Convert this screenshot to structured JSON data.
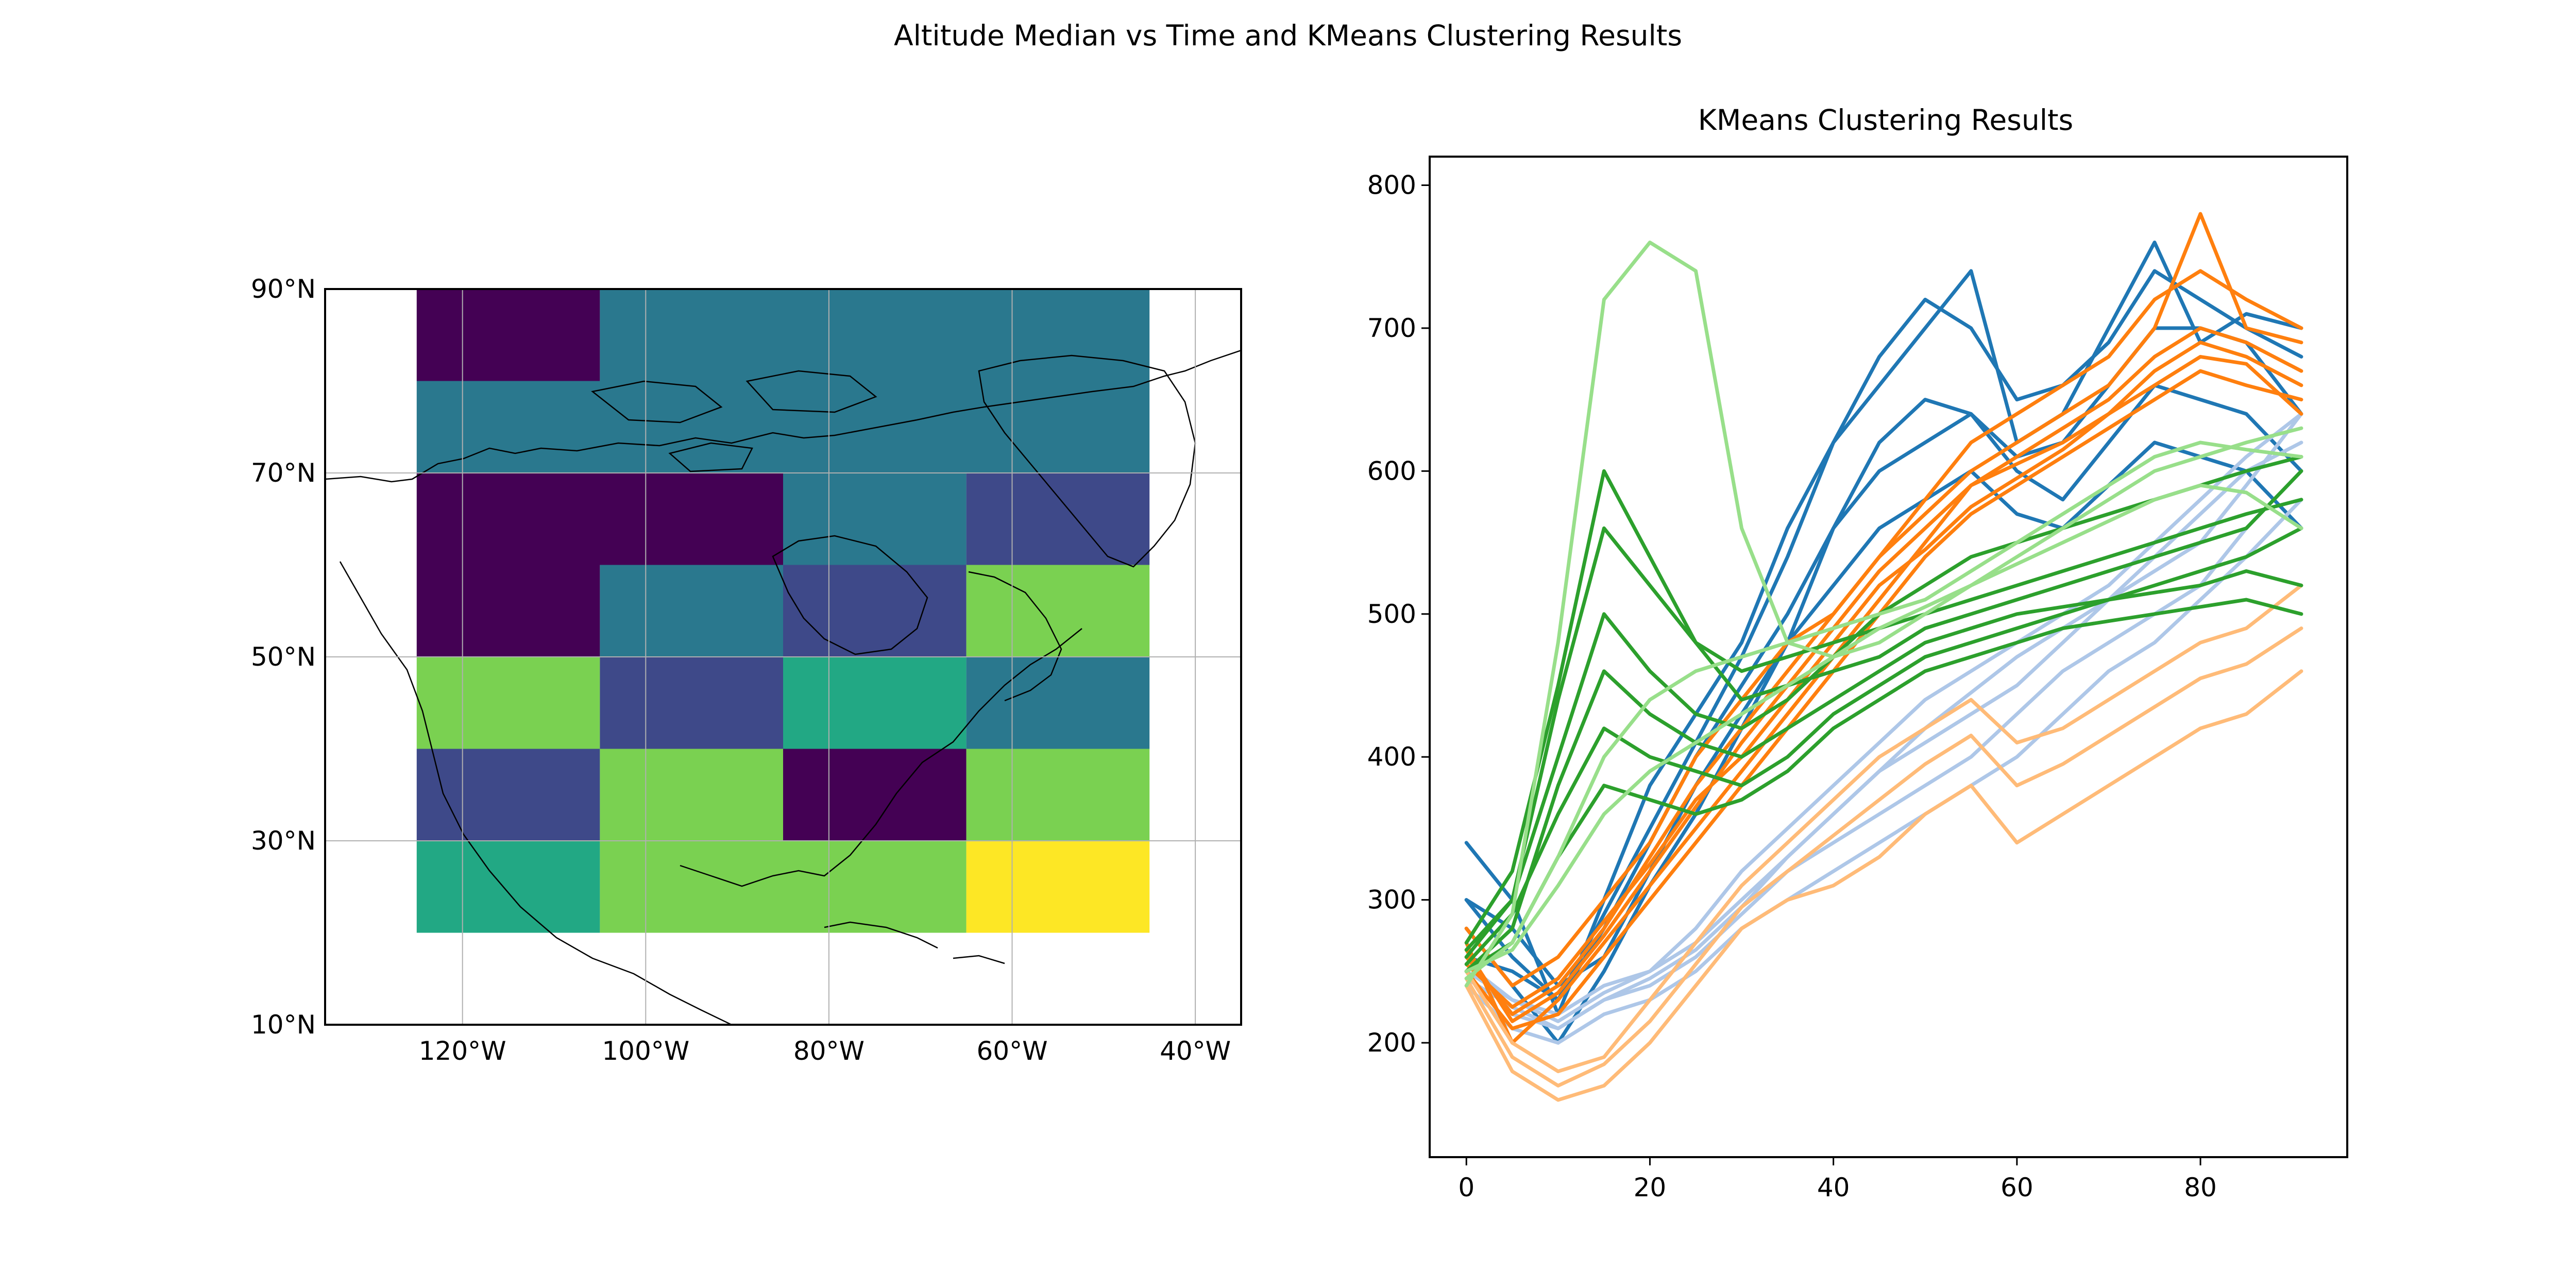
{
  "figure": {
    "suptitle": "Altitude Median vs Time and KMeans Clustering Results"
  },
  "chart_data": [
    {
      "type": "heatmap",
      "title": "",
      "xlabel": "",
      "ylabel": "",
      "x_ticks": [
        "120°W",
        "100°W",
        "80°W",
        "60°W",
        "40°W"
      ],
      "y_ticks": [
        "90°N",
        "70°N",
        "50°N",
        "30°N",
        "10°N"
      ],
      "xlim": [
        -135,
        -35
      ],
      "ylim": [
        10,
        90
      ],
      "grid": true,
      "colormap": [
        "#440154",
        "#3e4989",
        "#2a788e",
        "#22a884",
        "#7ad151",
        "#fde725"
      ],
      "cells": [
        {
          "lon0": -125,
          "lon1": -105,
          "lat0": 80,
          "lat1": 90,
          "cluster": 0
        },
        {
          "lon0": -105,
          "lon1": -45,
          "lat0": 80,
          "lat1": 90,
          "cluster": 2
        },
        {
          "lon0": -125,
          "lon1": -45,
          "lat0": 70,
          "lat1": 80,
          "cluster": 2
        },
        {
          "lon0": -125,
          "lon1": -85,
          "lat0": 60,
          "lat1": 70,
          "cluster": 0
        },
        {
          "lon0": -85,
          "lon1": -65,
          "lat0": 60,
          "lat1": 70,
          "cluster": 2
        },
        {
          "lon0": -65,
          "lon1": -45,
          "lat0": 60,
          "lat1": 70,
          "cluster": 1
        },
        {
          "lon0": -125,
          "lon1": -105,
          "lat0": 50,
          "lat1": 60,
          "cluster": 0
        },
        {
          "lon0": -105,
          "lon1": -85,
          "lat0": 50,
          "lat1": 60,
          "cluster": 2
        },
        {
          "lon0": -85,
          "lon1": -65,
          "lat0": 50,
          "lat1": 60,
          "cluster": 1
        },
        {
          "lon0": -65,
          "lon1": -45,
          "lat0": 50,
          "lat1": 60,
          "cluster": 4
        },
        {
          "lon0": -125,
          "lon1": -105,
          "lat0": 40,
          "lat1": 50,
          "cluster": 4
        },
        {
          "lon0": -105,
          "lon1": -85,
          "lat0": 40,
          "lat1": 50,
          "cluster": 1
        },
        {
          "lon0": -85,
          "lon1": -65,
          "lat0": 40,
          "lat1": 50,
          "cluster": 3
        },
        {
          "lon0": -65,
          "lon1": -45,
          "lat0": 40,
          "lat1": 50,
          "cluster": 2
        },
        {
          "lon0": -125,
          "lon1": -105,
          "lat0": 30,
          "lat1": 40,
          "cluster": 1
        },
        {
          "lon0": -105,
          "lon1": -85,
          "lat0": 30,
          "lat1": 40,
          "cluster": 4
        },
        {
          "lon0": -85,
          "lon1": -65,
          "lat0": 30,
          "lat1": 40,
          "cluster": 0
        },
        {
          "lon0": -65,
          "lon1": -45,
          "lat0": 30,
          "lat1": 40,
          "cluster": 4
        },
        {
          "lon0": -125,
          "lon1": -105,
          "lat0": 20,
          "lat1": 30,
          "cluster": 3
        },
        {
          "lon0": -105,
          "lon1": -65,
          "lat0": 20,
          "lat1": 30,
          "cluster": 4
        },
        {
          "lon0": -65,
          "lon1": -45,
          "lat0": 20,
          "lat1": 30,
          "cluster": 5
        }
      ]
    },
    {
      "type": "line",
      "title": "KMeans Clustering Results",
      "xlabel": "",
      "ylabel": "",
      "xlim": [
        -4,
        96
      ],
      "ylim": [
        120,
        820
      ],
      "x_ticks": [
        0,
        20,
        40,
        60,
        80
      ],
      "y_ticks": [
        200,
        300,
        400,
        500,
        600,
        700,
        800
      ],
      "grid": false,
      "x": [
        0,
        5,
        10,
        15,
        20,
        25,
        30,
        35,
        40,
        45,
        50,
        55,
        60,
        65,
        70,
        75,
        80,
        85,
        91
      ],
      "series": [
        {
          "color": "#1f77b4",
          "values": [
            340,
            300,
            220,
            300,
            380,
            430,
            480,
            560,
            620,
            660,
            700,
            740,
            620,
            640,
            700,
            760,
            690,
            710,
            700
          ]
        },
        {
          "color": "#1f77b4",
          "values": [
            300,
            260,
            230,
            290,
            350,
            410,
            470,
            540,
            620,
            680,
            720,
            700,
            650,
            660,
            690,
            740,
            720,
            700,
            680
          ]
        },
        {
          "color": "#1f77b4",
          "values": [
            280,
            240,
            200,
            250,
            310,
            360,
            420,
            480,
            560,
            620,
            650,
            640,
            610,
            620,
            660,
            700,
            700,
            690,
            640
          ]
        },
        {
          "color": "#1f77b4",
          "values": [
            260,
            250,
            230,
            280,
            340,
            400,
            450,
            500,
            560,
            600,
            620,
            640,
            600,
            580,
            620,
            660,
            650,
            640,
            600
          ]
        },
        {
          "color": "#1f77b4",
          "values": [
            300,
            280,
            240,
            260,
            320,
            380,
            430,
            480,
            520,
            560,
            580,
            600,
            570,
            560,
            590,
            620,
            610,
            600,
            560
          ]
        },
        {
          "color": "#aec7e8",
          "values": [
            260,
            220,
            210,
            230,
            240,
            260,
            290,
            320,
            340,
            360,
            380,
            400,
            430,
            460,
            480,
            500,
            520,
            560,
            600
          ]
        },
        {
          "color": "#aec7e8",
          "values": [
            250,
            230,
            220,
            240,
            250,
            270,
            300,
            330,
            360,
            390,
            410,
            430,
            450,
            480,
            510,
            530,
            550,
            590,
            640
          ]
        },
        {
          "color": "#aec7e8",
          "values": [
            240,
            210,
            200,
            220,
            230,
            250,
            280,
            300,
            320,
            340,
            360,
            380,
            400,
            430,
            460,
            480,
            510,
            540,
            580
          ]
        },
        {
          "color": "#aec7e8",
          "values": [
            255,
            230,
            215,
            235,
            250,
            280,
            320,
            350,
            380,
            410,
            440,
            460,
            480,
            500,
            520,
            550,
            580,
            610,
            640
          ]
        },
        {
          "color": "#aec7e8",
          "values": [
            245,
            225,
            210,
            230,
            245,
            265,
            295,
            330,
            360,
            390,
            420,
            445,
            470,
            490,
            510,
            540,
            570,
            600,
            620
          ]
        },
        {
          "color": "#ff7f0e",
          "values": [
            280,
            240,
            260,
            300,
            340,
            400,
            440,
            480,
            500,
            540,
            580,
            620,
            640,
            660,
            680,
            720,
            740,
            720,
            700
          ]
        },
        {
          "color": "#ff7f0e",
          "values": [
            260,
            220,
            240,
            280,
            330,
            380,
            420,
            460,
            500,
            540,
            570,
            600,
            620,
            640,
            660,
            700,
            780,
            700,
            690
          ]
        },
        {
          "color": "#ff7f0e",
          "values": [
            270,
            200,
            230,
            270,
            310,
            350,
            390,
            430,
            470,
            510,
            550,
            590,
            610,
            630,
            650,
            680,
            700,
            690,
            670
          ]
        },
        {
          "color": "#ff7f0e",
          "values": [
            250,
            210,
            220,
            260,
            300,
            340,
            380,
            420,
            460,
            500,
            540,
            570,
            590,
            610,
            630,
            650,
            670,
            660,
            650
          ]
        },
        {
          "color": "#ff7f0e",
          "values": [
            265,
            215,
            235,
            275,
            320,
            365,
            410,
            450,
            490,
            530,
            560,
            590,
            605,
            620,
            640,
            670,
            690,
            680,
            660
          ]
        },
        {
          "color": "#ff7f0e",
          "values": [
            255,
            225,
            245,
            285,
            325,
            370,
            400,
            440,
            480,
            520,
            545,
            575,
            595,
            615,
            640,
            660,
            680,
            675,
            640
          ]
        },
        {
          "color": "#ffbb78",
          "values": [
            240,
            180,
            160,
            170,
            200,
            240,
            280,
            300,
            310,
            330,
            360,
            380,
            340,
            360,
            380,
            400,
            420,
            430,
            460
          ]
        },
        {
          "color": "#ffbb78",
          "values": [
            250,
            200,
            180,
            190,
            230,
            270,
            310,
            340,
            370,
            400,
            420,
            440,
            410,
            420,
            440,
            460,
            480,
            490,
            520
          ]
        },
        {
          "color": "#ffbb78",
          "values": [
            245,
            190,
            170,
            185,
            215,
            255,
            295,
            320,
            345,
            370,
            395,
            415,
            380,
            395,
            415,
            435,
            455,
            465,
            490
          ]
        },
        {
          "color": "#2ca02c",
          "values": [
            260,
            300,
            440,
            560,
            520,
            480,
            460,
            470,
            480,
            490,
            500,
            510,
            520,
            530,
            540,
            550,
            560,
            570,
            580
          ]
        },
        {
          "color": "#2ca02c",
          "values": [
            270,
            320,
            450,
            600,
            540,
            480,
            440,
            450,
            460,
            470,
            490,
            500,
            510,
            520,
            530,
            540,
            550,
            560,
            600
          ]
        },
        {
          "color": "#2ca02c",
          "values": [
            250,
            280,
            380,
            460,
            430,
            410,
            400,
            420,
            440,
            460,
            480,
            490,
            500,
            505,
            510,
            520,
            530,
            540,
            560
          ]
        },
        {
          "color": "#2ca02c",
          "values": [
            255,
            290,
            360,
            420,
            400,
            390,
            380,
            400,
            430,
            450,
            470,
            480,
            490,
            500,
            510,
            515,
            520,
            530,
            520
          ]
        },
        {
          "color": "#2ca02c",
          "values": [
            265,
            300,
            400,
            500,
            460,
            430,
            420,
            440,
            470,
            500,
            520,
            540,
            550,
            560,
            570,
            580,
            590,
            600,
            610
          ]
        },
        {
          "color": "#2ca02c",
          "values": [
            250,
            270,
            330,
            380,
            370,
            360,
            370,
            390,
            420,
            440,
            460,
            470,
            480,
            490,
            495,
            500,
            505,
            510,
            500
          ]
        },
        {
          "color": "#98df8a",
          "values": [
            240,
            290,
            480,
            720,
            760,
            740,
            560,
            480,
            470,
            480,
            500,
            520,
            540,
            560,
            580,
            600,
            610,
            620,
            630
          ]
        },
        {
          "color": "#98df8a",
          "values": [
            245,
            270,
            330,
            400,
            440,
            460,
            470,
            480,
            490,
            500,
            510,
            530,
            550,
            570,
            590,
            610,
            620,
            615,
            610
          ]
        },
        {
          "color": "#98df8a",
          "values": [
            250,
            265,
            310,
            360,
            390,
            410,
            430,
            450,
            470,
            490,
            505,
            520,
            535,
            550,
            565,
            580,
            590,
            585,
            560
          ]
        }
      ]
    }
  ]
}
